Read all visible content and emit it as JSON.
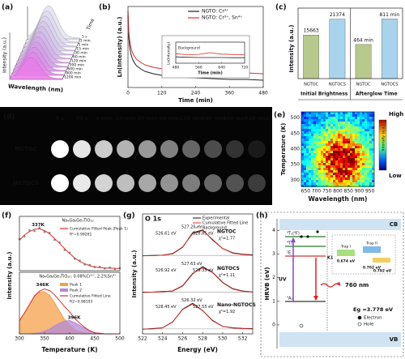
{
  "panel_a": {
    "label": "(a)",
    "ylabel": "Intensity (a.u.)",
    "xlabel": "Wavelength (nm)",
    "zlabel": "Time",
    "times": [
      "5 s",
      "1 min",
      "5 min",
      "15 min",
      "30 min",
      "60 min",
      "120 min",
      "300 min",
      "600 min",
      "900 min",
      "1200 min"
    ]
  },
  "chart_data": [
    {
      "type": "line",
      "label": "(b)",
      "xlabel": "Time (min)",
      "ylabel": "Ln(Intensity) (a.u.)",
      "x": [
        0,
        3,
        6,
        10,
        15,
        20,
        30,
        45,
        60,
        90,
        120,
        180,
        240,
        300,
        360,
        420,
        480
      ],
      "xlim": [
        0,
        480
      ],
      "xticks": [
        0,
        120,
        240,
        360,
        480
      ],
      "ylim": [
        0,
        1
      ],
      "series": [
        {
          "name": "NGTO: Cr³⁺",
          "color": "#222222",
          "values": [
            0.9,
            0.62,
            0.5,
            0.42,
            0.36,
            0.32,
            0.27,
            0.23,
            0.2,
            0.17,
            0.15,
            0.13,
            0.12,
            0.11,
            0.1,
            0.1,
            0.09
          ]
        },
        {
          "name": "NGTO: Cr³⁺, Sn⁴⁺",
          "color": "#e03030",
          "values": [
            0.95,
            0.7,
            0.58,
            0.5,
            0.44,
            0.4,
            0.35,
            0.31,
            0.28,
            0.25,
            0.23,
            0.21,
            0.2,
            0.19,
            0.18,
            0.18,
            0.17
          ]
        }
      ]
    },
    {
      "type": "line",
      "annotation": "Background",
      "xlabel": "Time (min)",
      "ylabel": "Ln(Intensity)",
      "x": [
        480,
        520,
        560,
        600,
        640,
        680,
        720
      ],
      "xlim": [
        480,
        720
      ],
      "xticks": [
        480,
        560,
        640,
        720
      ],
      "ylim": [
        0,
        1
      ],
      "series": [
        {
          "color": "#222222",
          "values": [
            0.3,
            0.28,
            0.27,
            0.27,
            0.27,
            0.26,
            0.26
          ]
        },
        {
          "color": "#e03030",
          "values": [
            0.45,
            0.4,
            0.42,
            0.5,
            0.43,
            0.41,
            0.4
          ]
        }
      ]
    },
    {
      "type": "bar",
      "label": "(c)",
      "ylabel": "Intensity (a.u.)",
      "categories": [
        "NGTOC",
        "NGTOCS",
        "NGTOC",
        "NGTOCS"
      ],
      "colors": [
        "#b8c98c",
        "#a9d3ec",
        "#b8c98c",
        "#a9d3ec"
      ],
      "ylim": [
        0,
        23000
      ],
      "y2lim": [
        0,
        870
      ],
      "series": [
        {
          "name": "Initial Brightness",
          "values": [
            15663,
            21374,
            null,
            null
          ]
        },
        {
          "name": "Afterglow Time",
          "axis": "y2",
          "values": [
            null,
            null,
            464,
            811
          ],
          "value_labels": [
            null,
            null,
            "464 min",
            "811 min"
          ]
        }
      ]
    },
    {
      "type": "heatmap",
      "label": "(e)",
      "xlabel": "Wavelength (nm)",
      "ylabel": "Temperature (K)",
      "xlim": [
        630,
        970
      ],
      "xticks": [
        650,
        700,
        750,
        800,
        850,
        900,
        950
      ],
      "ylim": [
        280,
        520
      ],
      "yticks": [
        300,
        350,
        400,
        450,
        500
      ],
      "colorbar": {
        "label": "Intensity (a.u.)",
        "high": "High",
        "low": "Low"
      }
    },
    {
      "type": "fit",
      "label": "(f)",
      "title": "Na₄Ga₆Ge₃TiO₂₀",
      "annotations": [
        "R²=0.99261",
        "337K"
      ],
      "x": [
        300,
        310,
        320,
        330,
        340,
        350,
        360,
        370,
        380,
        390,
        400,
        410,
        420,
        430,
        440,
        450,
        460,
        470,
        480,
        490,
        500
      ],
      "xlim": [
        300,
        500
      ],
      "ylim": [
        0,
        1.05
      ],
      "series": [
        {
          "color": "#888888",
          "values": [
            0.72,
            0.78,
            0.92,
            0.9,
            0.98,
            0.88,
            0.86,
            0.7,
            0.64,
            0.47,
            0.41,
            0.27,
            0.23,
            0.14,
            0.13,
            0.08,
            0.09,
            0.05,
            0.07,
            0.04,
            0.06
          ]
        },
        {
          "name": "Cumulative Fitted Peak (Peak 1)",
          "color": "#d83030",
          "values": [
            0.69,
            0.81,
            0.89,
            0.94,
            0.95,
            0.91,
            0.84,
            0.73,
            0.62,
            0.5,
            0.39,
            0.29,
            0.21,
            0.16,
            0.11,
            0.09,
            0.07,
            0.06,
            0.06,
            0.05,
            0.05
          ]
        }
      ]
    },
    {
      "type": "fit",
      "title": "Na₄Ga₆Ge₃TiO₂₀: 0.08%Cr³⁺, 2.2%Sn⁴⁺",
      "annotations": [
        "R2=0.98193",
        "346K",
        "396K"
      ],
      "xlabel": "Temperature (K)",
      "ylabel": "Intensity (a.u.)",
      "x": [
        300,
        310,
        320,
        330,
        340,
        350,
        360,
        370,
        380,
        390,
        400,
        410,
        420,
        430,
        440,
        450,
        460,
        470,
        480,
        490,
        500
      ],
      "xlim": [
        300,
        500
      ],
      "xticks": [
        300,
        350,
        400,
        450,
        500
      ],
      "ylim": [
        0,
        1
      ],
      "series": [
        {
          "name": "Peak 1",
          "color": "#f5a04a",
          "area": true,
          "values": [
            0.25,
            0.39,
            0.55,
            0.7,
            0.78,
            0.79,
            0.72,
            0.58,
            0.42,
            0.27,
            0.16,
            0.08,
            0.04,
            0.02,
            0.01,
            0,
            0,
            0,
            0,
            0,
            0
          ]
        },
        {
          "name": "Peak 2",
          "color": "#b38ad6",
          "area": true,
          "values": [
            0,
            0,
            0,
            0.01,
            0.02,
            0.05,
            0.09,
            0.15,
            0.2,
            0.24,
            0.25,
            0.21,
            0.16,
            0.1,
            0.05,
            0.02,
            0.01,
            0,
            0,
            0,
            0
          ]
        },
        {
          "name": "Cumulative Fitted Line",
          "color": "#d83030",
          "values": [
            0.25,
            0.39,
            0.55,
            0.71,
            0.8,
            0.84,
            0.81,
            0.73,
            0.62,
            0.51,
            0.41,
            0.29,
            0.2,
            0.12,
            0.06,
            0.02,
            0.01,
            0,
            0,
            0,
            0
          ]
        }
      ]
    },
    {
      "type": "xps",
      "label": "(g)",
      "title": "O 1s",
      "xlabel": "Energy (eV)",
      "ylabel": "Intensity (a.u.)",
      "legend": {
        "experimental": "Experimental",
        "fit": "Cumulative Fitted Line",
        "background": "Background"
      },
      "x": [
        522,
        523,
        524,
        525,
        526,
        527,
        528,
        529,
        530,
        531,
        532,
        533
      ],
      "xlim": [
        522,
        533
      ],
      "xticks": [
        522,
        524,
        526,
        528,
        530,
        532
      ],
      "ylim": [
        0,
        1
      ],
      "spectra": [
        {
          "name": "NGTOC",
          "chi": "χ²=1.77",
          "peak_labels": [
            "527.25 eV",
            "528.85 eV",
            "526.61 eV"
          ],
          "values": [
            0.05,
            0.06,
            0.07,
            0.12,
            0.35,
            0.85,
            0.95,
            0.6,
            0.3,
            0.15,
            0.1,
            0.08
          ],
          "fit": [
            0.05,
            0.05,
            0.07,
            0.13,
            0.36,
            0.82,
            0.93,
            0.62,
            0.3,
            0.14,
            0.09,
            0.07
          ]
        },
        {
          "name": "NGTOCS",
          "chi": "χ²=1.11",
          "peak_labels": [
            "527.63 eV",
            "529.35 eV",
            "526.92 eV"
          ],
          "values": [
            0.06,
            0.06,
            0.08,
            0.1,
            0.28,
            0.7,
            0.95,
            0.75,
            0.4,
            0.18,
            0.1,
            0.07
          ],
          "fit": [
            0.05,
            0.06,
            0.07,
            0.11,
            0.29,
            0.72,
            0.92,
            0.74,
            0.39,
            0.17,
            0.09,
            0.07
          ]
        },
        {
          "name": "Nano-NGTOCS",
          "chi": "χ²=1.92",
          "peak_labels": [
            "526.32 eV",
            "527.55 eV",
            "528.45 eV"
          ],
          "values": [
            0.05,
            0.07,
            0.1,
            0.3,
            0.75,
            0.95,
            0.7,
            0.35,
            0.15,
            0.1,
            0.08,
            0.07
          ],
          "fit": [
            0.05,
            0.06,
            0.1,
            0.31,
            0.74,
            0.93,
            0.7,
            0.34,
            0.15,
            0.09,
            0.07,
            0.06
          ]
        }
      ]
    }
  ],
  "panel_d": {
    "label": "(d)",
    "times": [
      "5 s",
      "30 s",
      "3 min",
      "10 min",
      "30 min",
      "60 min",
      "120 min",
      "240 min",
      "360 min",
      "720 min"
    ],
    "rows": [
      "NGTOC",
      "NGTOCS"
    ]
  },
  "panel_h": {
    "label": "(h)",
    "ylabel": "HRVB (eV)",
    "ylim": [
      -1,
      4.5
    ],
    "yticks": [
      4,
      3,
      2,
      1,
      0
    ],
    "cb": "CB",
    "vb": "VB",
    "levels": [
      "⁴T₁(⁴F)",
      "⁴T₂",
      "²E",
      "⁴A₂"
    ],
    "excitation": "UV",
    "emission": "760 nm",
    "k1": "K1",
    "traps": [
      {
        "name": "Trap I",
        "depth": "0.674 eV"
      },
      {
        "name": "Trap II",
        "depth": "0.702 eV"
      }
    ],
    "extra_depth": "0.792 eV",
    "gap": "Eg =3.778 eV",
    "legend": [
      "Electron",
      "Hole"
    ]
  }
}
